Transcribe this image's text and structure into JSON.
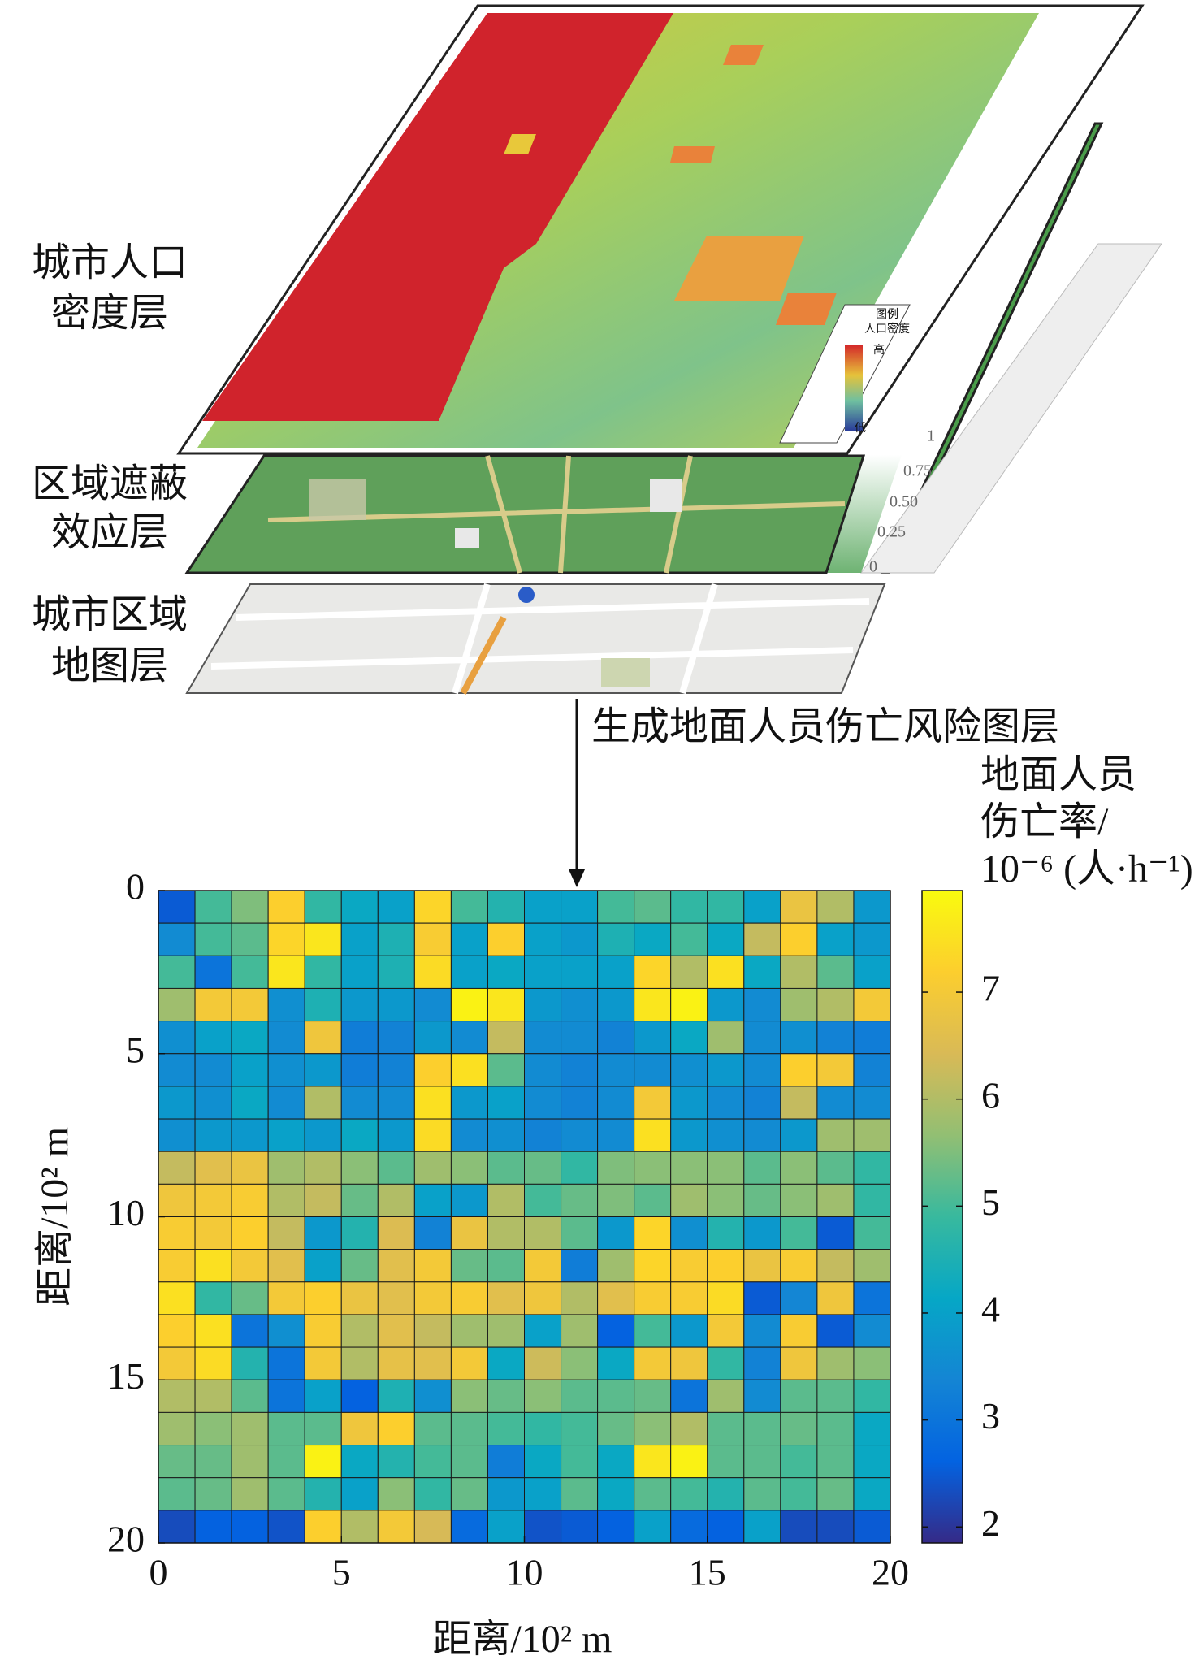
{
  "illustration": {
    "layer_labels": [
      [
        "城市人口",
        "密度层"
      ],
      [
        "区域遮蔽",
        "效应层"
      ],
      [
        "城市区域",
        "地图层"
      ]
    ],
    "arrow_label": "生成地面人员伤亡风险图层",
    "density_legend": {
      "title": [
        "图例",
        "人口密度"
      ],
      "high": "高",
      "low": "低"
    },
    "shield_scale": [
      "1",
      "0.75",
      "0.50",
      "0.25",
      "0"
    ]
  },
  "chart_data": {
    "type": "heatmap",
    "x_label": "距离/10² m",
    "y_label": "距离/10² m",
    "colorbar_label": [
      "地面人员",
      "伤亡率/",
      "10⁻⁶ (人·h⁻¹)"
    ],
    "colormap": "parula",
    "xlim": [
      0,
      20
    ],
    "xticks": [
      0,
      5,
      10,
      15,
      20
    ],
    "ylim": [
      0,
      20
    ],
    "yticks": [
      0,
      5,
      10,
      15,
      20
    ],
    "y_inverted": true,
    "clim": [
      1.85,
      7.95
    ],
    "cticks": [
      2,
      3,
      4,
      5,
      6,
      7
    ],
    "z": [
      [
        2.5,
        5,
        5.5,
        7.2,
        4.8,
        4.2,
        4,
        7.3,
        5,
        4.6,
        4,
        4,
        5,
        5.2,
        4.8,
        4.8,
        4,
        6.8,
        6,
        3.8
      ],
      [
        3.5,
        5,
        5.2,
        7.3,
        7.6,
        4,
        4.5,
        7.1,
        4,
        7.2,
        4,
        3.8,
        4.5,
        4.2,
        5,
        4.2,
        6.2,
        7.2,
        4,
        3.8
      ],
      [
        5,
        3,
        5,
        7.6,
        4.8,
        4,
        4.5,
        7.4,
        4,
        4.2,
        4,
        4,
        4,
        7.3,
        6,
        7.5,
        4.2,
        6,
        5.2,
        4
      ],
      [
        5.8,
        7,
        7,
        3.6,
        4.5,
        3.8,
        3.8,
        3.5,
        7.8,
        7.6,
        3.8,
        3.6,
        3.8,
        7.6,
        7.8,
        3.8,
        3.5,
        5.8,
        6,
        7
      ],
      [
        3.6,
        4,
        4.2,
        3.5,
        6.9,
        3.2,
        3.3,
        3.8,
        3.5,
        6.2,
        3.5,
        3.5,
        3.3,
        3.8,
        4.2,
        5.8,
        3.5,
        3.6,
        3.3,
        3.2
      ],
      [
        3.5,
        3.5,
        4,
        3.6,
        3.8,
        3.2,
        3.3,
        7.2,
        7.5,
        5.2,
        3.5,
        3.3,
        3.5,
        3.5,
        3.6,
        3.8,
        3.5,
        7.2,
        7,
        3.3
      ],
      [
        3.8,
        3.6,
        4.2,
        3.5,
        6,
        3.5,
        3.5,
        7.5,
        3.8,
        4,
        3.5,
        3.3,
        3.5,
        7,
        3.8,
        3.5,
        3.3,
        6.2,
        3.5,
        3.5
      ],
      [
        3.6,
        3.8,
        3.8,
        4,
        3.8,
        4.2,
        3.8,
        7.4,
        3.5,
        3.6,
        3.3,
        3.5,
        3.5,
        7.5,
        3.8,
        3.6,
        3.5,
        3.8,
        5.8,
        5.8
      ],
      [
        6.2,
        6.6,
        6.8,
        5.8,
        6,
        5.6,
        5.2,
        5.8,
        5.6,
        5.2,
        5.3,
        4.8,
        5.5,
        5.6,
        5.6,
        5.6,
        5.2,
        5.6,
        5.2,
        4.8
      ],
      [
        6.9,
        7,
        7.1,
        6,
        6.2,
        5.3,
        6,
        4,
        3.8,
        6,
        5,
        5.3,
        5.5,
        5.2,
        5.8,
        5.6,
        5.3,
        5.6,
        5.8,
        4.8
      ],
      [
        7.1,
        7,
        7.2,
        6.2,
        3.8,
        4.6,
        6.5,
        3.3,
        6.8,
        6,
        6,
        5.2,
        3.8,
        7.3,
        3.6,
        4.6,
        3.8,
        5,
        2.5,
        5
      ],
      [
        7.1,
        7.5,
        7,
        6.6,
        4,
        5.3,
        6.6,
        7,
        5.3,
        5.2,
        7,
        3.2,
        5.8,
        7.3,
        7.1,
        7.2,
        6.8,
        7.1,
        6.2,
        5.8
      ],
      [
        7.5,
        4.8,
        5.3,
        7,
        7.2,
        6.8,
        6.6,
        7,
        7.1,
        6.6,
        6.9,
        6,
        6.6,
        7.1,
        7.1,
        7.4,
        2.5,
        3.4,
        6.9,
        3
      ],
      [
        7.2,
        7.5,
        3,
        3.6,
        7.1,
        6,
        6.6,
        6.2,
        5.8,
        5.8,
        4,
        5.8,
        2.6,
        5,
        3.8,
        7,
        3.5,
        7.1,
        2.5,
        3.5
      ],
      [
        7,
        7.4,
        4.6,
        3,
        7,
        6,
        6.7,
        6.6,
        7,
        4.2,
        6.3,
        5.6,
        4.2,
        7,
        6.9,
        4.8,
        3.3,
        6.9,
        5.8,
        5.6
      ],
      [
        6,
        6,
        5.2,
        3,
        4,
        2.6,
        4.5,
        3.6,
        5.6,
        5.3,
        5.6,
        5.2,
        5.2,
        5.3,
        3,
        5.8,
        3.5,
        5.2,
        5.2,
        4.8
      ],
      [
        5.8,
        5.6,
        5.8,
        5.2,
        5.2,
        6.9,
        7.2,
        5.2,
        5.2,
        5,
        4.8,
        5,
        5.3,
        5.6,
        6,
        5.2,
        5.2,
        5.3,
        5.2,
        4.2
      ],
      [
        5.3,
        5.3,
        5.8,
        5.2,
        7.8,
        4.2,
        4.6,
        5,
        5.2,
        3.2,
        4.2,
        5,
        4.2,
        7.6,
        7.8,
        5.2,
        5.2,
        5,
        5.2,
        4.2
      ],
      [
        5.2,
        5.3,
        5.8,
        5.2,
        4.6,
        4,
        5.6,
        4.8,
        5.3,
        3.8,
        4,
        5.2,
        4.2,
        5.2,
        5,
        4.6,
        5.2,
        5,
        5.3,
        4.2
      ],
      [
        2.3,
        2.6,
        2.6,
        2.4,
        7.2,
        6,
        7,
        6.4,
        2.8,
        4,
        2.4,
        2.5,
        2.6,
        4,
        2.8,
        2.6,
        4,
        2.3,
        2.3,
        2.5
      ]
    ]
  }
}
